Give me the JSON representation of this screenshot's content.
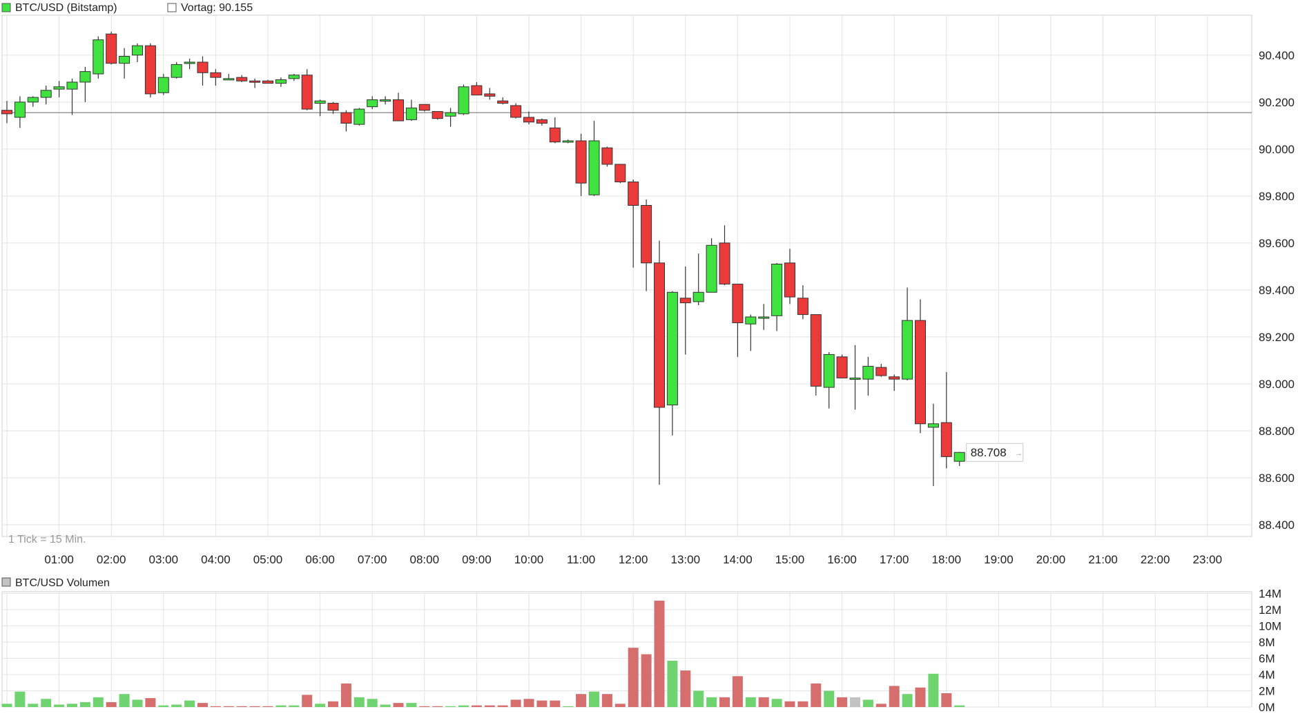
{
  "colors": {
    "up": "#3fe23f",
    "down": "#ea3a3a",
    "vol_up": "#6fd36f",
    "vol_down": "#d66e6e",
    "vol_neutral": "#c2c2c2",
    "grid": "#e3e3e3",
    "prev_close_line": "#666666",
    "text": "#222222",
    "muted_text": "#9a9a9a"
  },
  "chart_data": [
    {
      "type": "candlestick",
      "title": "BTC/USD (Bitstamp)",
      "prev_close_label": "Vortag: 90.155",
      "prev_close": 90155,
      "tick_note": "1 Tick = 15 Min.",
      "last_price_label": "88.708",
      "last_price": 88708,
      "interval_minutes": 15,
      "x_tick_labels": [
        "01:00",
        "02:00",
        "03:00",
        "04:00",
        "05:00",
        "06:00",
        "07:00",
        "08:00",
        "09:00",
        "10:00",
        "11:00",
        "12:00",
        "13:00",
        "14:00",
        "15:00",
        "16:00",
        "17:00",
        "18:00",
        "19:00",
        "20:00",
        "21:00",
        "22:00",
        "23:00"
      ],
      "y_tick_labels": [
        "90.400",
        "90.200",
        "90.000",
        "89.800",
        "89.600",
        "89.400",
        "89.200",
        "89.000",
        "88.800",
        "88.600",
        "88.400"
      ],
      "y_ticks": [
        90400,
        90200,
        90000,
        89800,
        89600,
        89400,
        89200,
        89000,
        88800,
        88600,
        88400
      ],
      "ylim": [
        88350,
        90570
      ],
      "grid": true,
      "candles": [
        {
          "t": "00:00",
          "o": 90165,
          "h": 90205,
          "l": 90110,
          "c": 90150
        },
        {
          "t": "00:15",
          "o": 90135,
          "h": 90225,
          "l": 90090,
          "c": 90200
        },
        {
          "t": "00:30",
          "o": 90200,
          "h": 90225,
          "l": 90180,
          "c": 90220
        },
        {
          "t": "00:45",
          "o": 90220,
          "h": 90270,
          "l": 90190,
          "c": 90250
        },
        {
          "t": "01:00",
          "o": 90255,
          "h": 90290,
          "l": 90220,
          "c": 90265
        },
        {
          "t": "01:15",
          "o": 90255,
          "h": 90300,
          "l": 90145,
          "c": 90285
        },
        {
          "t": "01:30",
          "o": 90285,
          "h": 90350,
          "l": 90200,
          "c": 90330
        },
        {
          "t": "01:45",
          "o": 90320,
          "h": 90480,
          "l": 90300,
          "c": 90465
        },
        {
          "t": "02:00",
          "o": 90490,
          "h": 90500,
          "l": 90360,
          "c": 90365
        },
        {
          "t": "02:15",
          "o": 90365,
          "h": 90430,
          "l": 90300,
          "c": 90395
        },
        {
          "t": "02:30",
          "o": 90400,
          "h": 90450,
          "l": 90370,
          "c": 90440
        },
        {
          "t": "02:45",
          "o": 90440,
          "h": 90450,
          "l": 90220,
          "c": 90235
        },
        {
          "t": "03:00",
          "o": 90240,
          "h": 90320,
          "l": 90230,
          "c": 90305
        },
        {
          "t": "03:15",
          "o": 90305,
          "h": 90370,
          "l": 90300,
          "c": 90360
        },
        {
          "t": "03:30",
          "o": 90365,
          "h": 90385,
          "l": 90340,
          "c": 90370
        },
        {
          "t": "03:45",
          "o": 90370,
          "h": 90395,
          "l": 90270,
          "c": 90325
        },
        {
          "t": "04:00",
          "o": 90325,
          "h": 90340,
          "l": 90270,
          "c": 90305
        },
        {
          "t": "04:15",
          "o": 90300,
          "h": 90320,
          "l": 90295,
          "c": 90300
        },
        {
          "t": "04:30",
          "o": 90305,
          "h": 90315,
          "l": 90285,
          "c": 90290
        },
        {
          "t": "04:45",
          "o": 90290,
          "h": 90300,
          "l": 90260,
          "c": 90285
        },
        {
          "t": "05:00",
          "o": 90290,
          "h": 90295,
          "l": 90280,
          "c": 90280
        },
        {
          "t": "05:15",
          "o": 90280,
          "h": 90305,
          "l": 90265,
          "c": 90295
        },
        {
          "t": "05:30",
          "o": 90300,
          "h": 90320,
          "l": 90290,
          "c": 90315
        },
        {
          "t": "05:45",
          "o": 90315,
          "h": 90340,
          "l": 90165,
          "c": 90170
        },
        {
          "t": "06:00",
          "o": 90195,
          "h": 90210,
          "l": 90140,
          "c": 90205
        },
        {
          "t": "06:15",
          "o": 90195,
          "h": 90200,
          "l": 90150,
          "c": 90165
        },
        {
          "t": "06:30",
          "o": 90155,
          "h": 90165,
          "l": 90075,
          "c": 90110
        },
        {
          "t": "06:45",
          "o": 90105,
          "h": 90175,
          "l": 90100,
          "c": 90170
        },
        {
          "t": "07:00",
          "o": 90180,
          "h": 90225,
          "l": 90170,
          "c": 90210
        },
        {
          "t": "07:15",
          "o": 90210,
          "h": 90225,
          "l": 90190,
          "c": 90210
        },
        {
          "t": "07:30",
          "o": 90210,
          "h": 90240,
          "l": 90120,
          "c": 90120
        },
        {
          "t": "07:45",
          "o": 90125,
          "h": 90210,
          "l": 90120,
          "c": 90175
        },
        {
          "t": "08:00",
          "o": 90190,
          "h": 90190,
          "l": 90160,
          "c": 90165
        },
        {
          "t": "08:15",
          "o": 90160,
          "h": 90160,
          "l": 90125,
          "c": 90130
        },
        {
          "t": "08:30",
          "o": 90140,
          "h": 90175,
          "l": 90095,
          "c": 90155
        },
        {
          "t": "08:45",
          "o": 90150,
          "h": 90275,
          "l": 90145,
          "c": 90265
        },
        {
          "t": "09:00",
          "o": 90270,
          "h": 90285,
          "l": 90235,
          "c": 90230
        },
        {
          "t": "09:15",
          "o": 90235,
          "h": 90260,
          "l": 90210,
          "c": 90225
        },
        {
          "t": "09:30",
          "o": 90205,
          "h": 90220,
          "l": 90190,
          "c": 90195
        },
        {
          "t": "09:45",
          "o": 90185,
          "h": 90195,
          "l": 90130,
          "c": 90135
        },
        {
          "t": "10:00",
          "o": 90135,
          "h": 90160,
          "l": 90105,
          "c": 90115
        },
        {
          "t": "10:15",
          "o": 90125,
          "h": 90130,
          "l": 90100,
          "c": 90110
        },
        {
          "t": "10:30",
          "o": 90090,
          "h": 90135,
          "l": 90025,
          "c": 90030
        },
        {
          "t": "10:45",
          "o": 90030,
          "h": 90040,
          "l": 90025,
          "c": 90035
        },
        {
          "t": "11:00",
          "o": 90035,
          "h": 90065,
          "l": 89800,
          "c": 89855
        },
        {
          "t": "11:15",
          "o": 89805,
          "h": 90120,
          "l": 89800,
          "c": 90035
        },
        {
          "t": "11:30",
          "o": 90005,
          "h": 90010,
          "l": 89925,
          "c": 89935
        },
        {
          "t": "11:45",
          "o": 89935,
          "h": 89935,
          "l": 89855,
          "c": 89860
        },
        {
          "t": "12:00",
          "o": 89860,
          "h": 89870,
          "l": 89495,
          "c": 89760
        },
        {
          "t": "12:15",
          "o": 89760,
          "h": 89785,
          "l": 89395,
          "c": 89515
        },
        {
          "t": "12:30",
          "o": 89515,
          "h": 89610,
          "l": 88570,
          "c": 88900
        },
        {
          "t": "12:45",
          "o": 88910,
          "h": 89395,
          "l": 88780,
          "c": 89390
        },
        {
          "t": "13:00",
          "o": 89365,
          "h": 89500,
          "l": 89125,
          "c": 89345
        },
        {
          "t": "13:15",
          "o": 89350,
          "h": 89555,
          "l": 89335,
          "c": 89390
        },
        {
          "t": "13:30",
          "o": 89390,
          "h": 89620,
          "l": 89390,
          "c": 89590
        },
        {
          "t": "13:45",
          "o": 89600,
          "h": 89675,
          "l": 89420,
          "c": 89425
        },
        {
          "t": "14:00",
          "o": 89425,
          "h": 89425,
          "l": 89115,
          "c": 89260
        },
        {
          "t": "14:15",
          "o": 89255,
          "h": 89295,
          "l": 89140,
          "c": 89285
        },
        {
          "t": "14:30",
          "o": 89285,
          "h": 89340,
          "l": 89230,
          "c": 89285
        },
        {
          "t": "14:45",
          "o": 89290,
          "h": 89515,
          "l": 89225,
          "c": 89510
        },
        {
          "t": "15:00",
          "o": 89515,
          "h": 89575,
          "l": 89340,
          "c": 89370
        },
        {
          "t": "15:15",
          "o": 89365,
          "h": 89420,
          "l": 89275,
          "c": 89295
        },
        {
          "t": "15:30",
          "o": 89295,
          "h": 89295,
          "l": 88950,
          "c": 88990
        },
        {
          "t": "15:45",
          "o": 88985,
          "h": 89135,
          "l": 88895,
          "c": 89125
        },
        {
          "t": "16:00",
          "o": 89115,
          "h": 89125,
          "l": 89025,
          "c": 89025
        },
        {
          "t": "16:15",
          "o": 89020,
          "h": 89165,
          "l": 88890,
          "c": 89025
        },
        {
          "t": "16:30",
          "o": 89020,
          "h": 89115,
          "l": 88950,
          "c": 89075
        },
        {
          "t": "16:45",
          "o": 89070,
          "h": 89085,
          "l": 89030,
          "c": 89035
        },
        {
          "t": "17:00",
          "o": 89030,
          "h": 89040,
          "l": 88970,
          "c": 89020
        },
        {
          "t": "17:15",
          "o": 89020,
          "h": 89410,
          "l": 89015,
          "c": 89270
        },
        {
          "t": "17:30",
          "o": 89270,
          "h": 89360,
          "l": 88790,
          "c": 88830
        },
        {
          "t": "17:45",
          "o": 88815,
          "h": 88915,
          "l": 88565,
          "c": 88830
        },
        {
          "t": "18:00",
          "o": 88835,
          "h": 89050,
          "l": 88640,
          "c": 88690
        },
        {
          "t": "18:15",
          "o": 88670,
          "h": 88710,
          "l": 88650,
          "c": 88708
        }
      ]
    },
    {
      "type": "bar",
      "title": "BTC/USD Volumen",
      "unit": "M",
      "y_tick_labels": [
        "14M",
        "12M",
        "10M",
        "8M",
        "6M",
        "4M",
        "2M",
        "0M"
      ],
      "y_ticks": [
        14,
        12,
        10,
        8,
        6,
        4,
        2,
        0
      ],
      "ylim": [
        0,
        14.2
      ],
      "grid": true,
      "bars": [
        {
          "t": "00:00",
          "v": 0.4,
          "dir": "up"
        },
        {
          "t": "00:15",
          "v": 1.9,
          "dir": "up"
        },
        {
          "t": "00:30",
          "v": 0.4,
          "dir": "up"
        },
        {
          "t": "00:45",
          "v": 1.0,
          "dir": "up"
        },
        {
          "t": "01:00",
          "v": 0.3,
          "dir": "up"
        },
        {
          "t": "01:15",
          "v": 0.4,
          "dir": "up"
        },
        {
          "t": "01:30",
          "v": 0.6,
          "dir": "up"
        },
        {
          "t": "01:45",
          "v": 1.2,
          "dir": "up"
        },
        {
          "t": "02:00",
          "v": 0.6,
          "dir": "down"
        },
        {
          "t": "02:15",
          "v": 1.6,
          "dir": "up"
        },
        {
          "t": "02:30",
          "v": 0.9,
          "dir": "up"
        },
        {
          "t": "02:45",
          "v": 1.1,
          "dir": "down"
        },
        {
          "t": "03:00",
          "v": 0.2,
          "dir": "up"
        },
        {
          "t": "03:15",
          "v": 0.3,
          "dir": "up"
        },
        {
          "t": "03:30",
          "v": 0.8,
          "dir": "up"
        },
        {
          "t": "03:45",
          "v": 0.5,
          "dir": "down"
        },
        {
          "t": "04:00",
          "v": 0.1,
          "dir": "down"
        },
        {
          "t": "04:15",
          "v": 0.1,
          "dir": "down"
        },
        {
          "t": "04:30",
          "v": 0.1,
          "dir": "down"
        },
        {
          "t": "04:45",
          "v": 0.1,
          "dir": "down"
        },
        {
          "t": "05:00",
          "v": 0.1,
          "dir": "down"
        },
        {
          "t": "05:15",
          "v": 0.2,
          "dir": "up"
        },
        {
          "t": "05:30",
          "v": 0.2,
          "dir": "up"
        },
        {
          "t": "05:45",
          "v": 1.5,
          "dir": "down"
        },
        {
          "t": "06:00",
          "v": 0.4,
          "dir": "up"
        },
        {
          "t": "06:15",
          "v": 0.7,
          "dir": "down"
        },
        {
          "t": "06:30",
          "v": 2.9,
          "dir": "down"
        },
        {
          "t": "06:45",
          "v": 1.2,
          "dir": "up"
        },
        {
          "t": "07:00",
          "v": 1.0,
          "dir": "up"
        },
        {
          "t": "07:15",
          "v": 0.3,
          "dir": "up"
        },
        {
          "t": "07:30",
          "v": 0.5,
          "dir": "down"
        },
        {
          "t": "07:45",
          "v": 0.5,
          "dir": "up"
        },
        {
          "t": "08:00",
          "v": 0.1,
          "dir": "down"
        },
        {
          "t": "08:15",
          "v": 0.1,
          "dir": "down"
        },
        {
          "t": "08:30",
          "v": 0.1,
          "dir": "up"
        },
        {
          "t": "08:45",
          "v": 0.2,
          "dir": "up"
        },
        {
          "t": "09:00",
          "v": 0.2,
          "dir": "down"
        },
        {
          "t": "09:15",
          "v": 0.2,
          "dir": "down"
        },
        {
          "t": "09:30",
          "v": 0.2,
          "dir": "down"
        },
        {
          "t": "09:45",
          "v": 0.9,
          "dir": "down"
        },
        {
          "t": "10:00",
          "v": 1.0,
          "dir": "down"
        },
        {
          "t": "10:15",
          "v": 0.8,
          "dir": "down"
        },
        {
          "t": "10:30",
          "v": 0.8,
          "dir": "down"
        },
        {
          "t": "10:45",
          "v": 0.1,
          "dir": "up"
        },
        {
          "t": "11:00",
          "v": 1.6,
          "dir": "down"
        },
        {
          "t": "11:15",
          "v": 1.9,
          "dir": "up"
        },
        {
          "t": "11:30",
          "v": 1.6,
          "dir": "down"
        },
        {
          "t": "11:45",
          "v": 0.4,
          "dir": "down"
        },
        {
          "t": "12:00",
          "v": 7.3,
          "dir": "down"
        },
        {
          "t": "12:15",
          "v": 6.5,
          "dir": "down"
        },
        {
          "t": "12:30",
          "v": 13.1,
          "dir": "down"
        },
        {
          "t": "12:45",
          "v": 5.7,
          "dir": "up"
        },
        {
          "t": "13:00",
          "v": 4.5,
          "dir": "down"
        },
        {
          "t": "13:15",
          "v": 2.0,
          "dir": "up"
        },
        {
          "t": "13:30",
          "v": 1.2,
          "dir": "up"
        },
        {
          "t": "13:45",
          "v": 1.2,
          "dir": "down"
        },
        {
          "t": "14:00",
          "v": 3.8,
          "dir": "down"
        },
        {
          "t": "14:15",
          "v": 1.2,
          "dir": "up"
        },
        {
          "t": "14:30",
          "v": 1.2,
          "dir": "down"
        },
        {
          "t": "14:45",
          "v": 1.0,
          "dir": "up"
        },
        {
          "t": "15:00",
          "v": 0.7,
          "dir": "down"
        },
        {
          "t": "15:15",
          "v": 0.7,
          "dir": "down"
        },
        {
          "t": "15:30",
          "v": 2.9,
          "dir": "down"
        },
        {
          "t": "15:45",
          "v": 2.0,
          "dir": "up"
        },
        {
          "t": "16:00",
          "v": 1.2,
          "dir": "down"
        },
        {
          "t": "16:15",
          "v": 1.2,
          "dir": "neutral"
        },
        {
          "t": "16:30",
          "v": 0.9,
          "dir": "up"
        },
        {
          "t": "16:45",
          "v": 0.4,
          "dir": "down"
        },
        {
          "t": "17:00",
          "v": 2.6,
          "dir": "down"
        },
        {
          "t": "17:15",
          "v": 1.6,
          "dir": "up"
        },
        {
          "t": "17:30",
          "v": 2.4,
          "dir": "down"
        },
        {
          "t": "17:45",
          "v": 4.1,
          "dir": "up"
        },
        {
          "t": "18:00",
          "v": 1.7,
          "dir": "down"
        },
        {
          "t": "18:15",
          "v": 0.2,
          "dir": "up"
        }
      ]
    }
  ]
}
